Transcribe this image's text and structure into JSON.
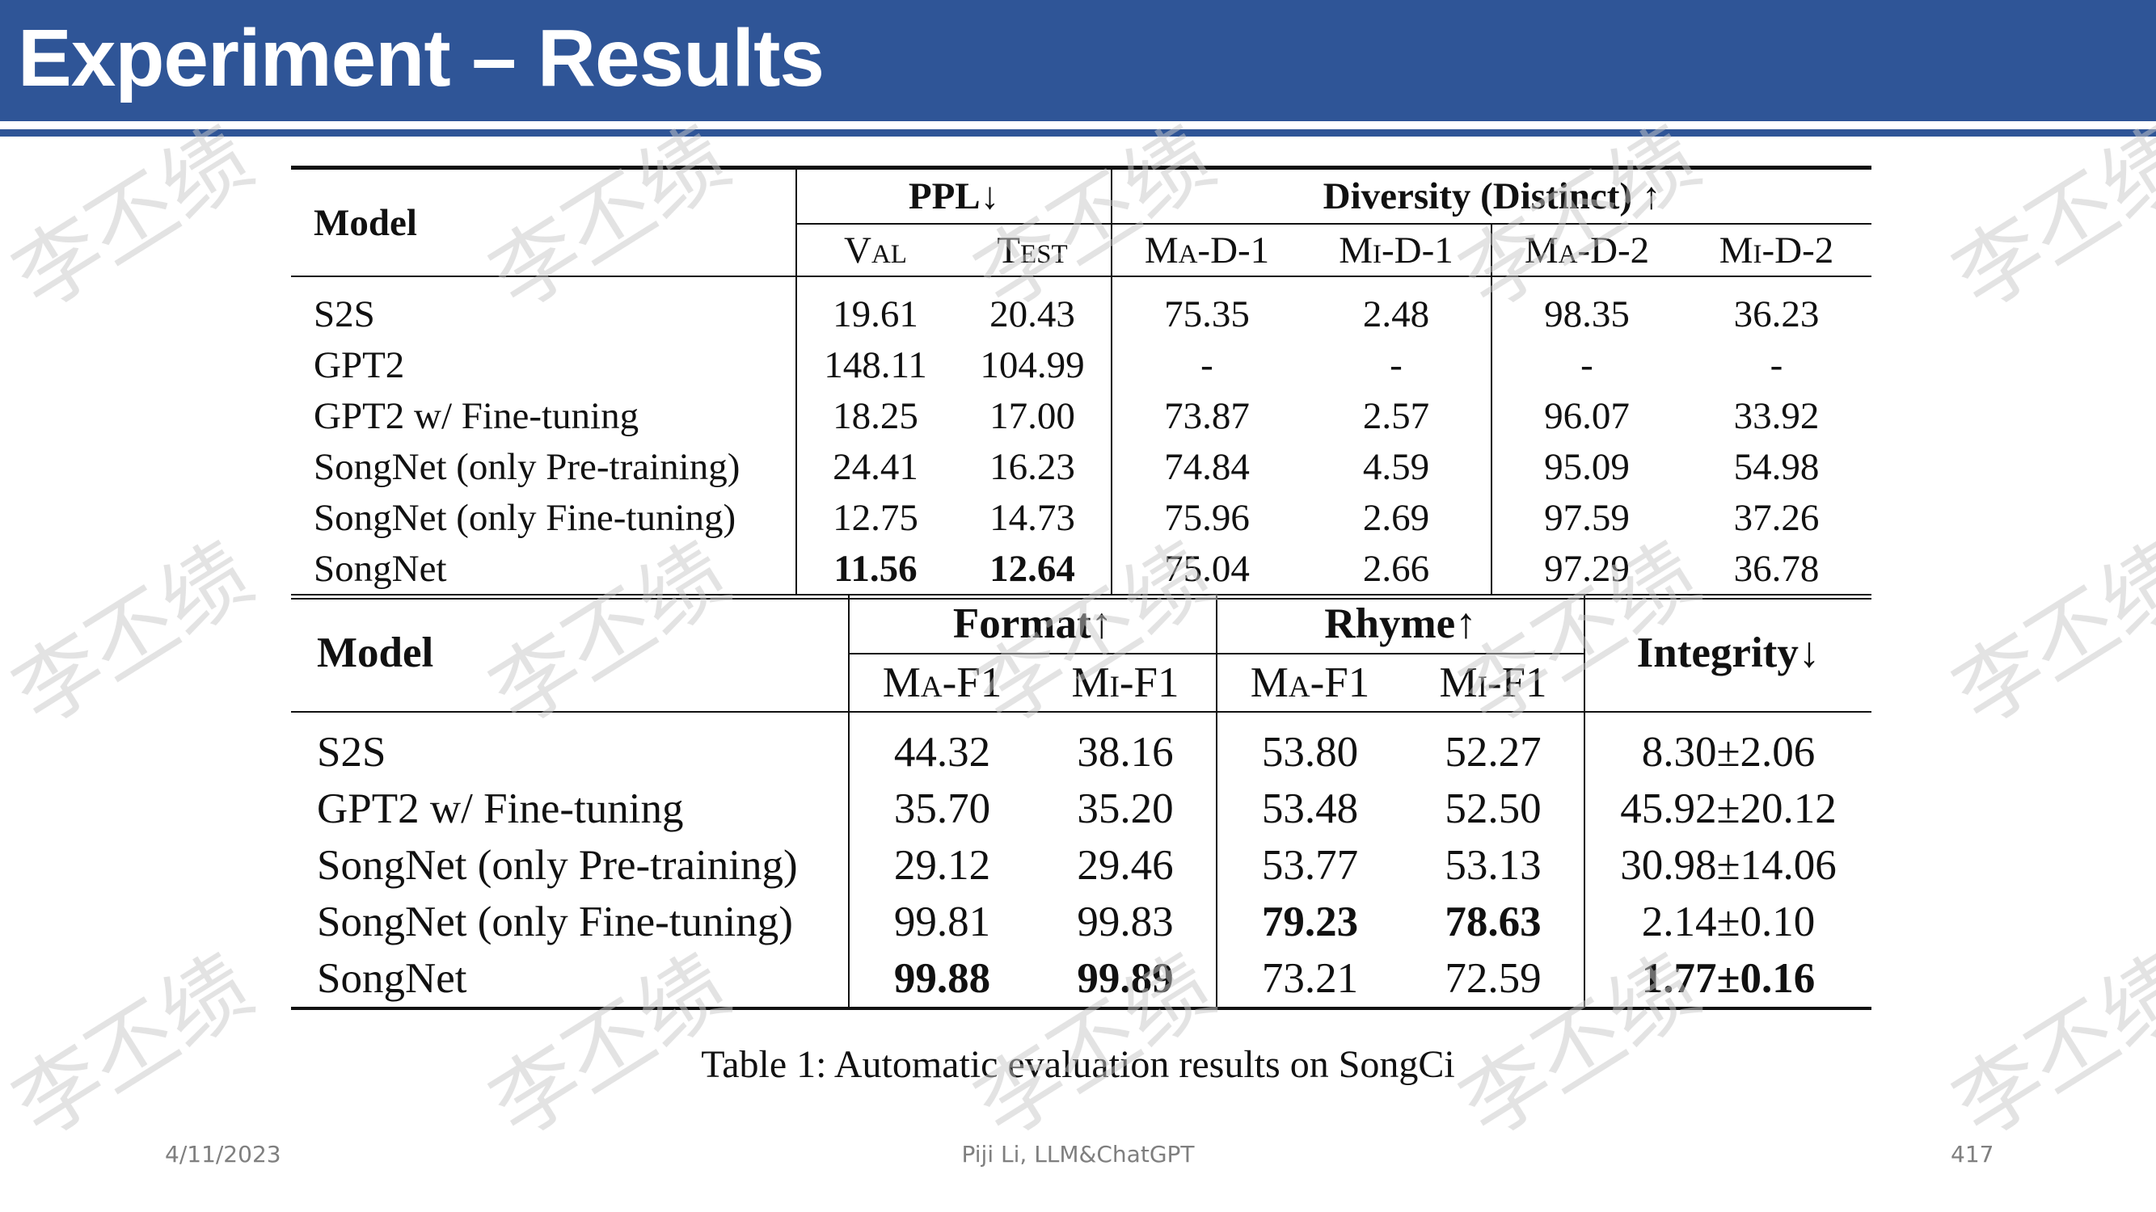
{
  "slide": {
    "title": "Experiment – Results",
    "footer_date": "4/11/2023",
    "footer_center": "Piji Li, LLM&ChatGPT",
    "page_number": "417",
    "watermark": "李丕绩",
    "header_color": "#2F5597"
  },
  "table1": {
    "header": {
      "model": "Model",
      "ppl": "PPL↓",
      "diversity": "Diversity (Distinct) ↑",
      "val": "Val",
      "test": "Test",
      "ma_d1": "Ma-D-1",
      "mi_d1": "Mi-D-1",
      "ma_d2": "Ma-D-2",
      "mi_d2": "Mi-D-2"
    },
    "rows": [
      {
        "model": "S2S",
        "cells": [
          "19.61",
          "20.43",
          "75.35",
          "2.48",
          "98.35",
          "36.23"
        ]
      },
      {
        "model": "GPT2",
        "cells": [
          "148.11",
          "104.99",
          "-",
          "-",
          "-",
          "-"
        ]
      },
      {
        "model": "GPT2 w/ Fine-tuning",
        "cells": [
          "18.25",
          "17.00",
          "73.87",
          "2.57",
          "96.07",
          "33.92"
        ]
      },
      {
        "model": "SongNet (only Pre-training)",
        "cells": [
          "24.41",
          "16.23",
          "74.84",
          "4.59",
          "95.09",
          "54.98"
        ]
      },
      {
        "model": "SongNet (only Fine-tuning)",
        "cells": [
          "12.75",
          "14.73",
          "75.96",
          "2.69",
          "97.59",
          "37.26"
        ]
      },
      {
        "model": "SongNet",
        "cells": [
          "11.56",
          "12.64",
          "75.04",
          "2.66",
          "97.29",
          "36.78"
        ]
      }
    ]
  },
  "table2": {
    "header": {
      "model": "Model",
      "format": "Format↑",
      "rhyme": "Rhyme↑",
      "integrity": "Integrity↓",
      "format_ma": "Ma-F1",
      "format_mi": "Mi-F1",
      "rhyme_ma": "Ma-F1",
      "rhyme_mi": "Mi-F1"
    },
    "rows": [
      {
        "model": "S2S",
        "cells": [
          "44.32",
          "38.16",
          "53.80",
          "52.27",
          "8.30±2.06"
        ]
      },
      {
        "model": "GPT2 w/ Fine-tuning",
        "cells": [
          "35.70",
          "35.20",
          "53.48",
          "52.50",
          "45.92±20.12"
        ]
      },
      {
        "model": "SongNet (only Pre-training)",
        "cells": [
          "29.12",
          "29.46",
          "53.77",
          "53.13",
          "30.98±14.06"
        ]
      },
      {
        "model": "SongNet (only Fine-tuning)",
        "cells": [
          "99.81",
          "99.83",
          "79.23",
          "78.63",
          "2.14±0.10"
        ]
      },
      {
        "model": "SongNet",
        "cells": [
          "99.88",
          "99.89",
          "73.21",
          "72.59",
          "1.77±0.16"
        ]
      }
    ]
  },
  "caption": "Table 1: Automatic evaluation results on SongCi"
}
